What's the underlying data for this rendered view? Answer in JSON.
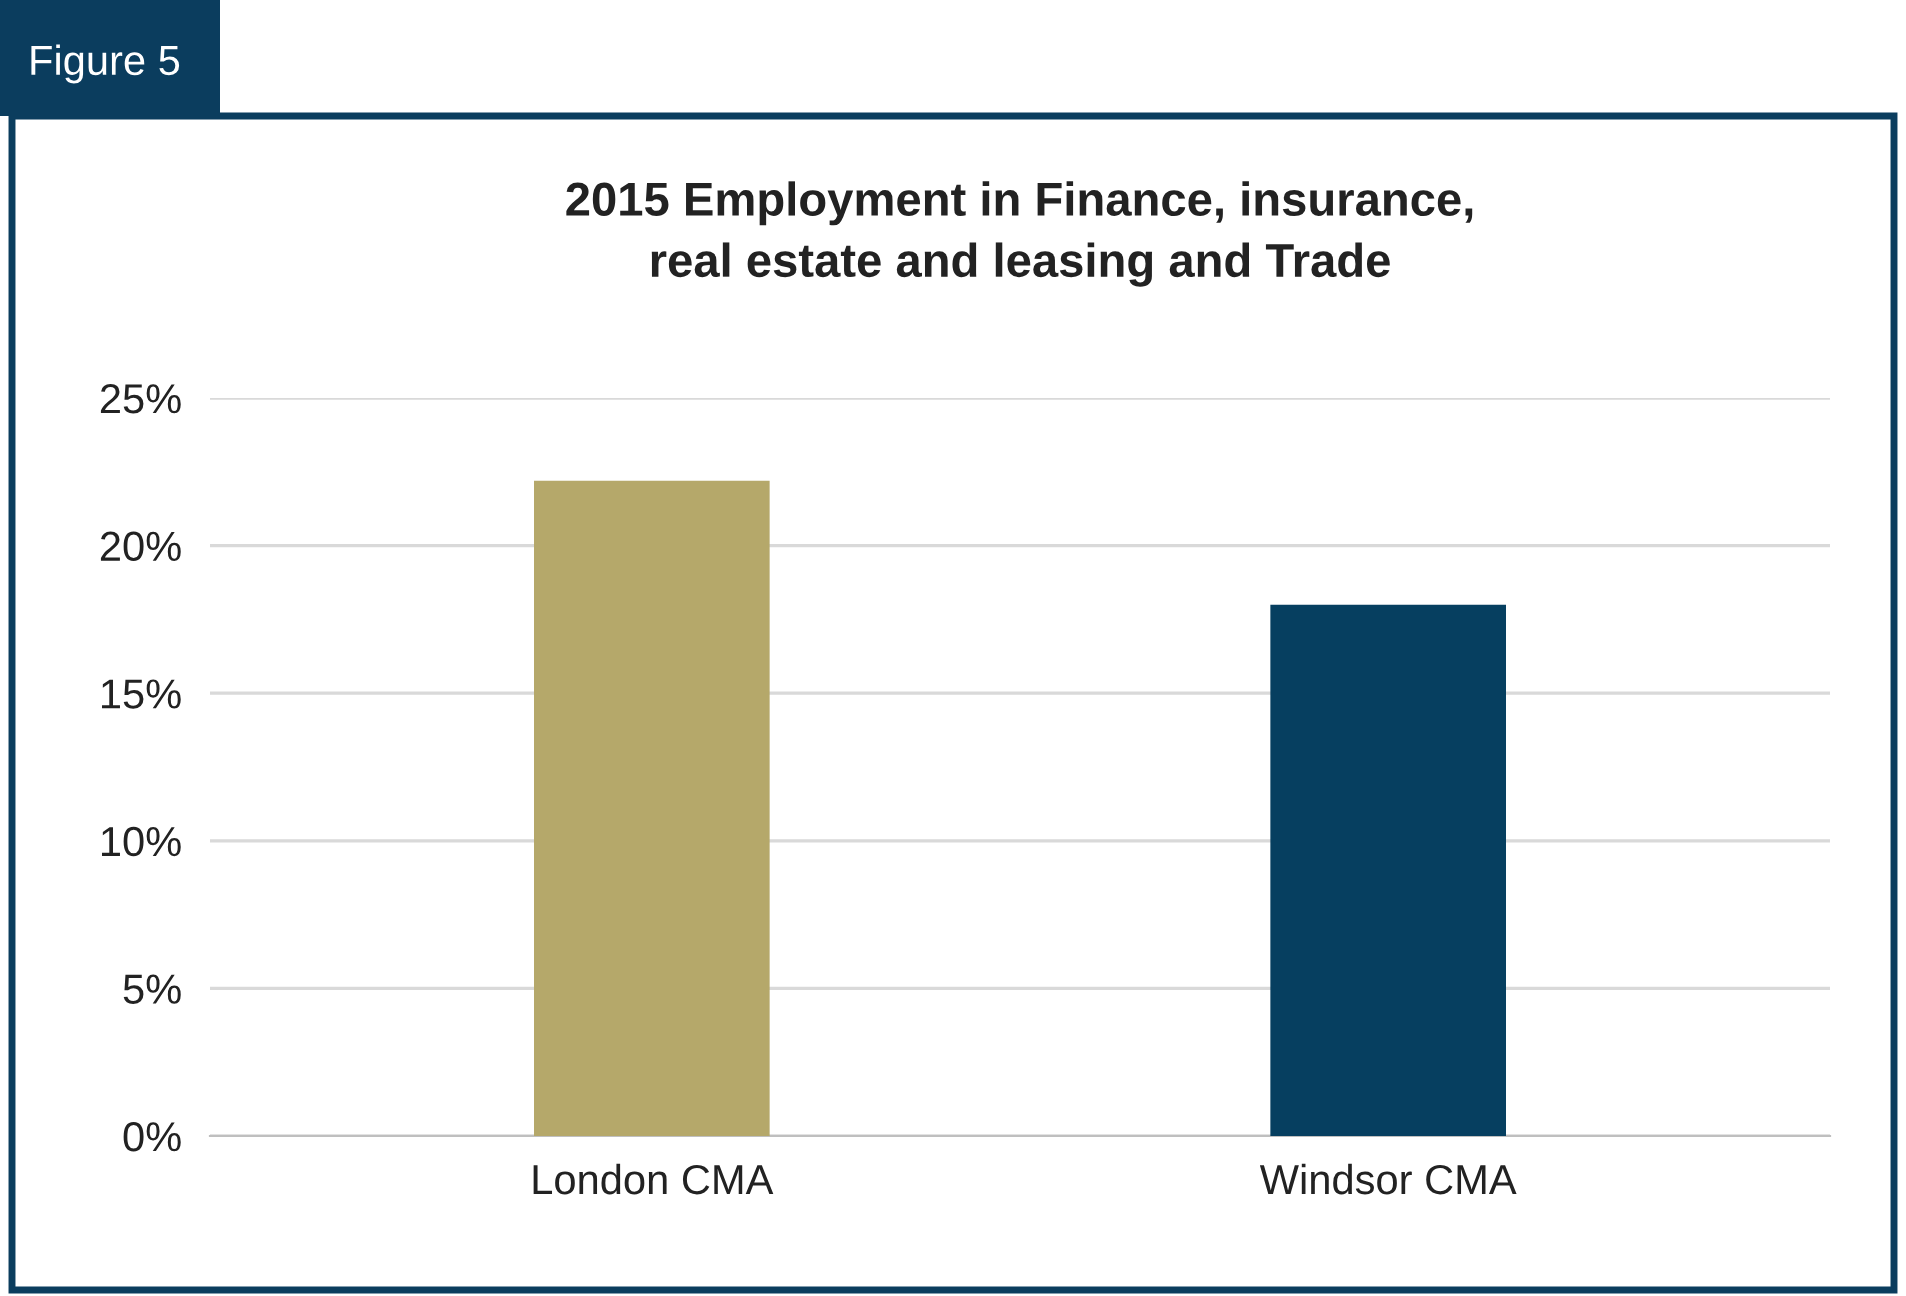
{
  "chart_data": {
    "type": "bar",
    "title": "2015 Employment in Finance, insurance,\nreal estate and leasing and Trade",
    "annotations": [
      "Figure 5"
    ],
    "categories": [
      "London CMA",
      "Windsor CMA"
    ],
    "values": [
      22.2,
      18.0
    ],
    "colors": [
      "#b5a86a",
      "#063f60"
    ],
    "ylim": [
      0,
      25
    ],
    "yticks": [
      {
        "value": 0,
        "label": "0%"
      },
      {
        "value": 5,
        "label": "5%"
      },
      {
        "value": 10,
        "label": "10%"
      },
      {
        "value": 15,
        "label": "15%"
      },
      {
        "value": 20,
        "label": "20%"
      },
      {
        "value": 25,
        "label": "25%"
      }
    ],
    "grid": "y",
    "legend": false
  }
}
